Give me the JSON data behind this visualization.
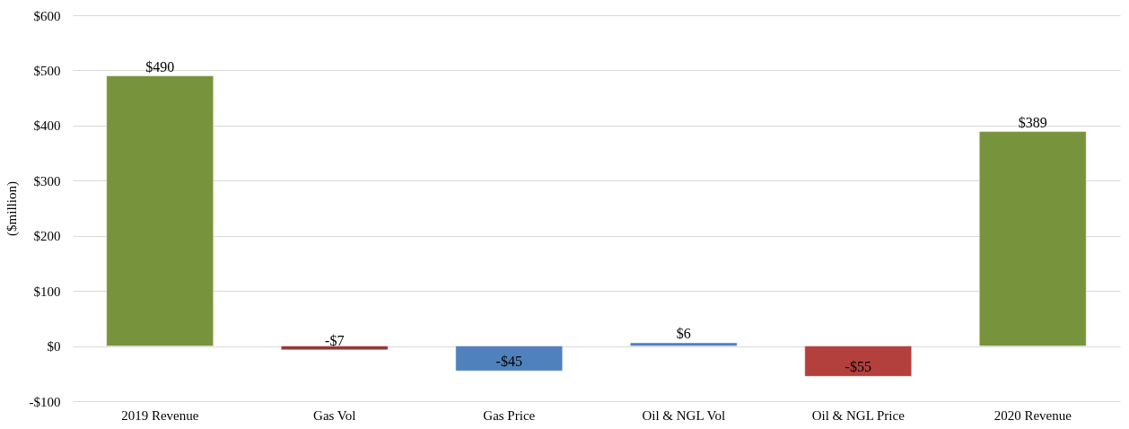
{
  "chart_data": {
    "type": "bar",
    "ylabel": "($million)",
    "categories": [
      "2019 Revenue",
      "Gas Vol",
      "Gas Price",
      "Oil & NGL Vol",
      "Oil & NGL Price",
      "2020 Revenue"
    ],
    "values": [
      490,
      -7,
      -45,
      6,
      -55,
      389
    ],
    "colors": [
      "#77933c",
      "#953735",
      "#4f81bd",
      "#4f81bd",
      "#b3403d",
      "#77933c"
    ],
    "value_labels": [
      "$490",
      "-$7",
      "-$45",
      "$6",
      "-$55",
      "$389"
    ],
    "ylim": [
      -100,
      600
    ],
    "yticks": [
      {
        "value": -100,
        "label": "-$100"
      },
      {
        "value": 0,
        "label": "$0"
      },
      {
        "value": 100,
        "label": "$100"
      },
      {
        "value": 200,
        "label": "$200"
      },
      {
        "value": 300,
        "label": "$300"
      },
      {
        "value": 400,
        "label": "$400"
      },
      {
        "value": 500,
        "label": "$500"
      },
      {
        "value": 600,
        "label": "$600"
      }
    ],
    "grid": "y"
  }
}
